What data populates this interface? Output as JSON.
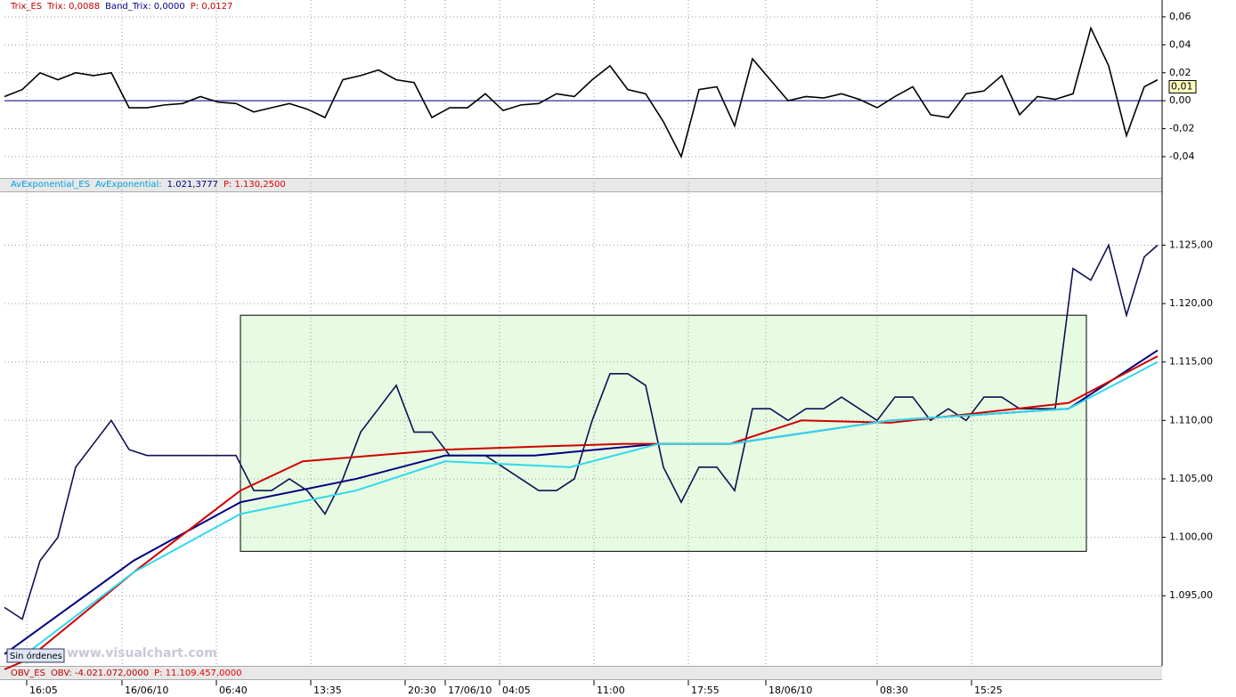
{
  "chart_data": [
    {
      "type": "line",
      "header": [
        {
          "text": "Trix_ES",
          "color": "#c00000"
        },
        {
          "text": "Trix: 0,0088",
          "color": "#c00000"
        },
        {
          "text": "Band_Trix: 0,0000",
          "color": "#000080"
        },
        {
          "text": "P: 0,0127",
          "color": "#c00000"
        }
      ],
      "x": [
        0,
        2,
        4,
        6,
        8,
        10,
        12,
        14,
        16,
        18,
        20,
        22,
        24,
        26,
        28,
        30,
        32,
        34,
        36,
        38,
        40,
        42,
        44,
        46,
        48,
        50,
        52,
        54,
        56,
        58,
        60,
        62,
        64,
        66,
        68,
        70,
        72,
        74,
        76,
        78,
        80,
        82,
        84,
        86,
        88,
        90,
        92,
        94,
        96,
        98,
        100,
        102,
        104,
        106,
        108,
        110,
        112,
        114,
        116,
        118,
        120,
        122,
        124,
        126,
        128,
        129.5
      ],
      "series": [
        {
          "color": "#000000",
          "values": [
            0.003,
            0.008,
            0.02,
            0.015,
            0.02,
            0.018,
            0.02,
            -0.005,
            -0.005,
            -0.003,
            -0.002,
            0.003,
            -0.001,
            -0.002,
            -0.008,
            -0.005,
            -0.002,
            -0.006,
            -0.012,
            0.015,
            0.018,
            0.022,
            0.015,
            0.013,
            -0.012,
            -0.005,
            -0.005,
            0.005,
            -0.007,
            -0.003,
            -0.002,
            0.005,
            0.003,
            0.015,
            0.025,
            0.008,
            0.005,
            -0.015,
            -0.04,
            0.008,
            0.01,
            -0.018,
            0.03,
            0.015,
            0,
            0.003,
            0.002,
            0.005,
            0.001,
            -0.005,
            0.003,
            0.01,
            -0.01,
            -0.012,
            0.005,
            0.007,
            0.018,
            -0.01,
            0.003,
            0.001,
            0.005,
            0.052,
            0.025,
            -0.025,
            0.01,
            0.015
          ]
        }
      ],
      "band": {
        "color": "#000080",
        "value": 0
      },
      "last_label": {
        "value": 0.01,
        "label": "0,01"
      },
      "xlim": [
        0,
        130
      ],
      "ylim": [
        -0.0553,
        0.0657
      ],
      "yticks": [
        {
          "value": 0.06,
          "label": "0,06"
        },
        {
          "value": 0.04,
          "label": "0,04"
        },
        {
          "value": 0.02,
          "label": "0,02"
        },
        {
          "value": 0,
          "label": "0,00"
        },
        {
          "value": -0.02,
          "label": "-0,02"
        },
        {
          "value": -0.04,
          "label": "-0,04"
        }
      ],
      "grid": true
    },
    {
      "type": "line",
      "header": [
        {
          "text": "AvExponential_ES",
          "color": "#00a0e0"
        },
        {
          "text": "AvExponential:",
          "color": "#00a0e0"
        },
        {
          "text": "1.021,3777",
          "color": "#000080"
        },
        {
          "text": "P: 1.130,2500",
          "color": "#e00000"
        }
      ],
      "x": [
        0,
        2,
        4,
        6,
        8,
        10,
        12,
        14,
        16,
        18,
        20,
        22,
        24,
        26,
        28,
        30,
        32,
        34,
        36,
        38,
        40,
        42,
        44,
        46,
        48,
        50,
        52,
        54,
        56,
        58,
        60,
        62,
        64,
        66,
        68,
        70,
        72,
        74,
        76,
        78,
        80,
        82,
        84,
        86,
        88,
        90,
        92,
        94,
        96,
        98,
        100,
        102,
        104,
        106,
        108,
        110,
        112,
        114,
        116,
        118,
        120,
        122,
        124,
        126,
        128,
        129.5
      ],
      "series": [
        {
          "color": "#101050",
          "values": [
            1094,
            1093,
            1098,
            1100,
            1106,
            1108,
            1110,
            1107.5,
            1107,
            1107,
            1107,
            1107,
            1107,
            1107,
            1104,
            1104,
            1105,
            1104,
            1102,
            1105,
            1109,
            1111,
            1113,
            1109,
            1109,
            1107,
            1107,
            1107,
            1106,
            1105,
            1104,
            1104,
            1105,
            1110,
            1114,
            1114,
            1113,
            1106,
            1103,
            1106,
            1106,
            1104,
            1111,
            1111,
            1110,
            1111,
            1111,
            1112,
            1111,
            1110,
            1112,
            1112,
            1110,
            1111,
            1110,
            1112,
            1112,
            1111,
            1111,
            1111,
            1123,
            1122,
            1125,
            1119,
            1124,
            1125
          ]
        },
        {
          "color": "#000080",
          "x": [
            0,
            14.5,
            26.5,
            39.5,
            49.5,
            59.5,
            73.5,
            81.5,
            99.5,
            119.5,
            129.5
          ],
          "values": [
            1090,
            1098,
            1103,
            1105,
            1107,
            1107,
            1108,
            1108,
            1110,
            1111,
            1116
          ]
        },
        {
          "color": "#d00000",
          "x": [
            0,
            2.5,
            14.5,
            26.5,
            33.5,
            49.5,
            69.5,
            81.5,
            89.5,
            99.5,
            119.5,
            129.5
          ],
          "values": [
            1088.7,
            1089.5,
            1097,
            1104,
            1106.5,
            1107.5,
            1108,
            1108,
            1110,
            1109.8,
            1111.5,
            1115.5
          ]
        },
        {
          "color": "#30d8f0",
          "x": [
            1.5,
            14.5,
            26.5,
            39.5,
            49.5,
            63.5,
            73.5,
            81.5,
            99.5,
            119.5,
            129.5
          ],
          "values": [
            1089.5,
            1097,
            1102,
            1104,
            1106.5,
            1106,
            1108,
            1108,
            1110,
            1111,
            1115
          ]
        }
      ],
      "highlight": {
        "x": [
          26.5,
          121.5
        ],
        "y": [
          1098.8,
          1119
        ],
        "color": "#e6fbe2"
      },
      "watermark": "www.visualchart.com",
      "button": "Sin órdenes",
      "xlim": [
        0,
        130
      ],
      "ylim": [
        1089,
        1129.6
      ],
      "yticks": [
        {
          "value": 1095,
          "label": "1.095,00"
        },
        {
          "value": 1100,
          "label": "1.100,00"
        },
        {
          "value": 1105,
          "label": "1.105,00"
        },
        {
          "value": 1110,
          "label": "1.110,00"
        },
        {
          "value": 1115,
          "label": "1.115,00"
        },
        {
          "value": 1120,
          "label": "1.120,00"
        },
        {
          "value": 1125,
          "label": "1.125,00"
        }
      ],
      "xticks": [
        {
          "value": 2.5,
          "label": "16:05"
        },
        {
          "value": 13.2,
          "label": "16/06/10"
        },
        {
          "value": 23.8,
          "label": "06:40"
        },
        {
          "value": 34.4,
          "label": "13:35"
        },
        {
          "value": 45,
          "label": "20:30"
        },
        {
          "value": 49.5,
          "label": "17/06/10"
        },
        {
          "value": 55.6,
          "label": "04:05"
        },
        {
          "value": 66.2,
          "label": "11:00"
        },
        {
          "value": 76.8,
          "label": "17:55"
        },
        {
          "value": 85.5,
          "label": "18/06/10"
        },
        {
          "value": 98,
          "label": "08:30"
        },
        {
          "value": 108.6,
          "label": "15:25"
        }
      ],
      "grid": true
    },
    {
      "type": "header",
      "header": [
        {
          "text": "OBV_ES",
          "color": "#c00000"
        },
        {
          "text": "OBV: -4.021.072,0000",
          "color": "#c00000"
        },
        {
          "text": "P: 11.109.457,0000",
          "color": "#e00000"
        }
      ]
    }
  ]
}
